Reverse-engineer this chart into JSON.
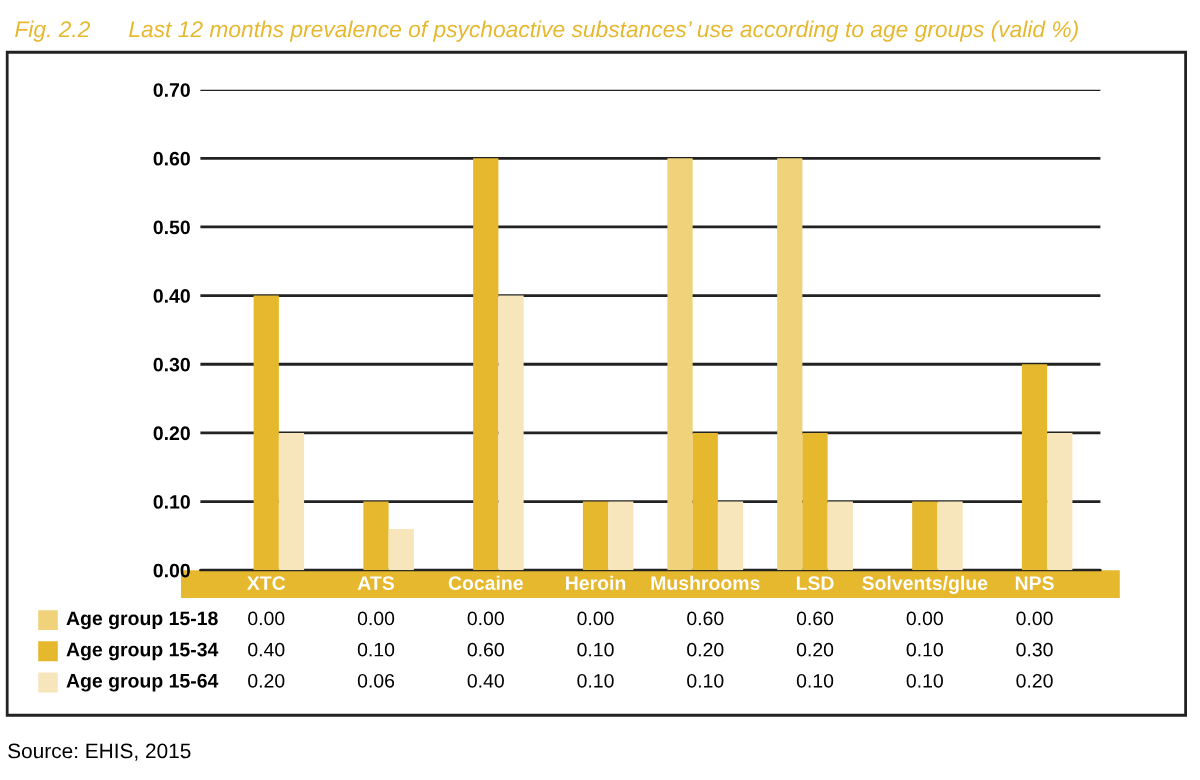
{
  "chart_data": {
    "type": "bar",
    "title": "Fig. 2.2      Last 12 months prevalence of psychoactive substances’ use according to age groups (valid %)",
    "categories": [
      "XTC",
      "ATS",
      "Cocaine",
      "Heroin",
      "Mushrooms",
      "LSD",
      "Solvents/glue",
      "NPS"
    ],
    "series": [
      {
        "name": "Age group 15-18",
        "color": "#efd27a",
        "values": [
          0.0,
          0.0,
          0.0,
          0.0,
          0.6,
          0.6,
          0.0,
          0.0
        ],
        "value_labels": [
          "0.00",
          "0.00",
          "0.00",
          "0.00",
          "0.60",
          "0.60",
          "0.00",
          "0.00"
        ]
      },
      {
        "name": "Age group 15-34",
        "color": "#e6b82e",
        "values": [
          0.4,
          0.1,
          0.6,
          0.1,
          0.2,
          0.2,
          0.1,
          0.3
        ],
        "value_labels": [
          "0.40",
          "0.10",
          "0.60",
          "0.10",
          "0.20",
          "0.20",
          "0.10",
          "0.30"
        ]
      },
      {
        "name": "Age group 15-64",
        "color": "#f7e6bc",
        "values": [
          0.2,
          0.06,
          0.4,
          0.1,
          0.1,
          0.1,
          0.1,
          0.2
        ],
        "value_labels": [
          "0.20",
          "0.06",
          "0.40",
          "0.10",
          "0.10",
          "0.10",
          "0.10",
          "0.20"
        ]
      }
    ],
    "ylim": [
      0,
      0.7
    ],
    "yticks": [
      {
        "value": 0,
        "label": "0.00"
      },
      {
        "value": 0.1,
        "label": "0.10"
      },
      {
        "value": 0.2,
        "label": "0.20"
      },
      {
        "value": 0.3,
        "label": "0.30"
      },
      {
        "value": 0.4,
        "label": "0.40"
      },
      {
        "value": 0.5,
        "label": "0.50"
      },
      {
        "value": 0.6,
        "label": "0.60"
      },
      {
        "value": 0.7,
        "label": "0.70"
      }
    ],
    "grid": "y",
    "legend": "bottom",
    "annotations": [
      "Source: EHIS, 2015"
    ]
  }
}
